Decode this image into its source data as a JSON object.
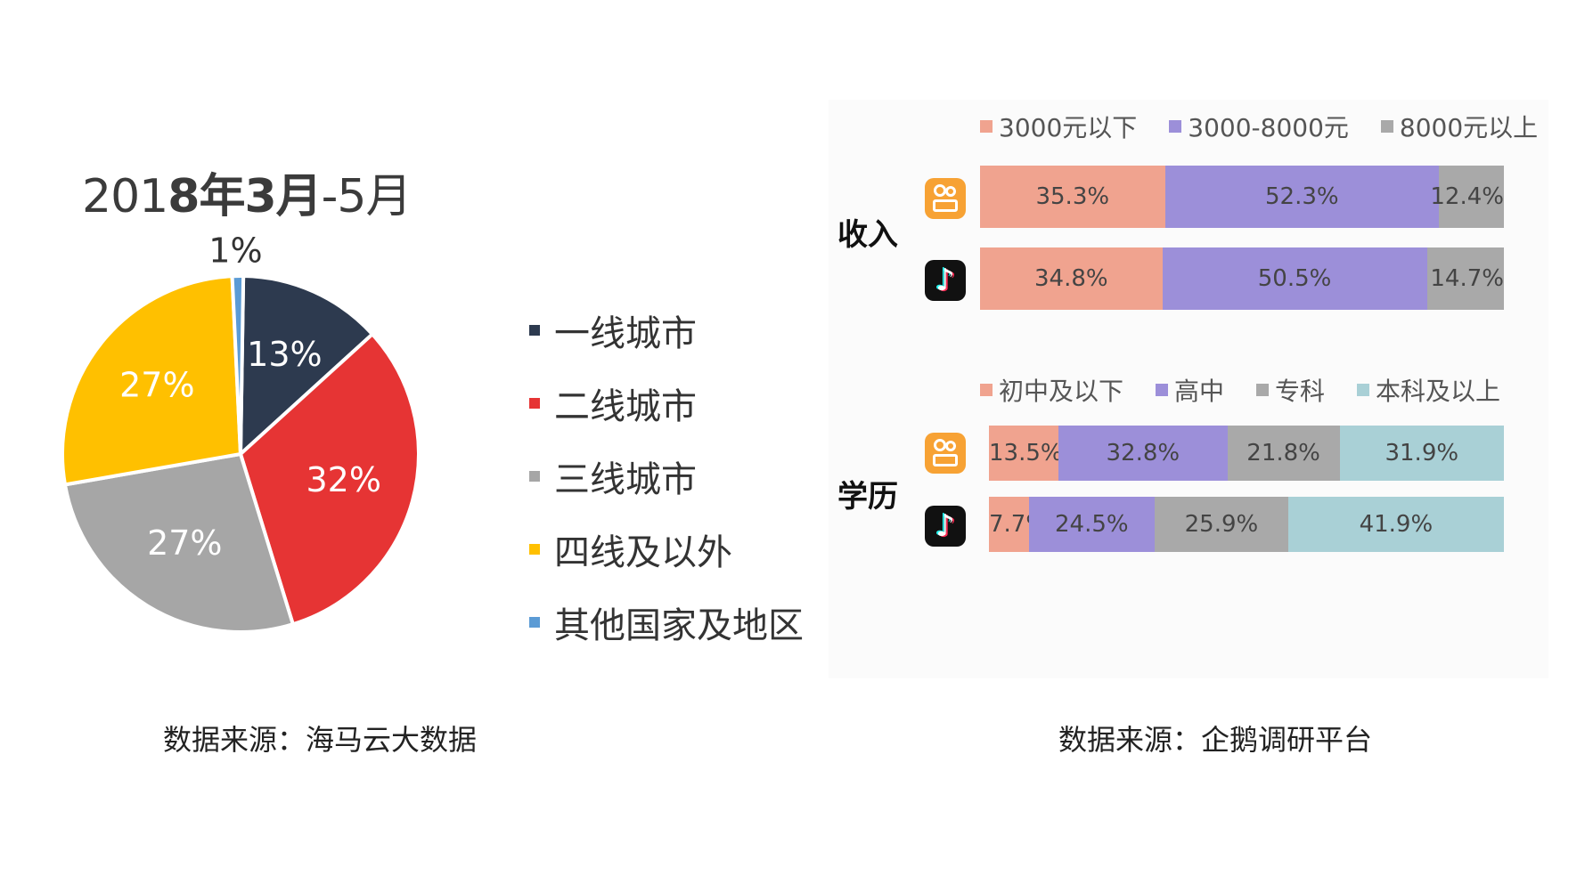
{
  "pie": {
    "title_normal_1": "201",
    "title_bold": "8年3月",
    "title_normal_2": "-5月",
    "source": "数据来源：海马云大数据"
  },
  "bars": {
    "source": "数据来源：企鹅调研平台",
    "income_label": "收入",
    "education_label": "学历",
    "income_legend": [
      "3000元以下",
      "3000-8000元",
      "8000元以上"
    ],
    "education_legend": [
      "初中及以下",
      "高中",
      "专科",
      "本科及以上"
    ],
    "douyin_glyph": "♪"
  },
  "colors": {
    "first_tier": "#2d3a4f",
    "second_tier": "#e63434",
    "third_tier": "#a6a6a6",
    "fourth_tier": "#ffc000",
    "other": "#5b9bd5",
    "income_low": "#f0a38f",
    "income_mid": "#9c8fd9",
    "income_high": "#a9a9a9",
    "edu_junior": "#f0a38f",
    "edu_senior": "#9c8fd9",
    "edu_college": "#a9a9a9",
    "edu_bachelor": "#a9d0d6",
    "kuaishou": "#f7a234",
    "douyin": "#111111"
  },
  "chart_data": [
    {
      "type": "pie",
      "title": "2018年3月-5月",
      "categories": [
        "一线城市",
        "二线城市",
        "三线城市",
        "四线及以外",
        "其他国家及地区"
      ],
      "values": [
        13,
        32,
        27,
        27,
        1
      ],
      "labels": [
        "13%",
        "32%",
        "27%",
        "27%",
        "1%"
      ],
      "legend_position": "right"
    },
    {
      "type": "bar",
      "stacked": true,
      "orientation": "horizontal",
      "title": "收入",
      "categories": [
        "快手",
        "抖音"
      ],
      "series": [
        {
          "name": "3000元以下",
          "values": [
            35.3,
            34.8
          ],
          "labels": [
            "35.3%",
            "34.8%"
          ]
        },
        {
          "name": "3000-8000元",
          "values": [
            52.3,
            50.5
          ],
          "labels": [
            "52.3%",
            "50.5%"
          ]
        },
        {
          "name": "8000元以上",
          "values": [
            12.4,
            14.7
          ],
          "labels": [
            "12.4%",
            "14.7%"
          ]
        }
      ],
      "legend_position": "top"
    },
    {
      "type": "bar",
      "stacked": true,
      "orientation": "horizontal",
      "title": "学历",
      "categories": [
        "快手",
        "抖音"
      ],
      "series": [
        {
          "name": "初中及以下",
          "values": [
            13.5,
            7.7
          ],
          "labels": [
            "13.5%",
            "7.7%"
          ]
        },
        {
          "name": "高中",
          "values": [
            32.8,
            24.5
          ],
          "labels": [
            "32.8%",
            "24.5%"
          ]
        },
        {
          "name": "专科",
          "values": [
            21.8,
            25.9
          ],
          "labels": [
            "21.8%",
            "25.9%"
          ]
        },
        {
          "name": "本科及以上",
          "values": [
            31.9,
            41.9
          ],
          "labels": [
            "31.9%",
            "41.9%"
          ]
        }
      ],
      "legend_position": "top"
    }
  ]
}
